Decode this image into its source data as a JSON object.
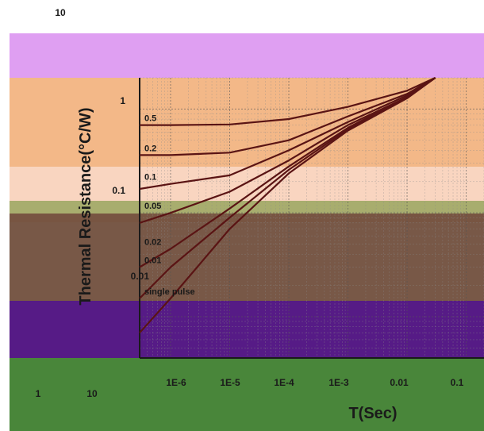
{
  "chart_data": {
    "type": "line",
    "title": "",
    "xlabel": "T(Sec)",
    "ylabel": "Thermal Resistance(°C/W)",
    "x_scale": "log",
    "y_scale": "log",
    "xlim": [
      3e-07,
      0.2
    ],
    "ylim": [
      0.004,
      2
    ],
    "grid": true,
    "x_tick_labels": [
      "1E-6",
      "1E-5",
      "1E-4",
      "1E-3",
      "0.01",
      "0.1"
    ],
    "y_tick_labels": [
      "1",
      "0.1",
      "0.01"
    ],
    "extra_tick_labels": [
      "10",
      "1",
      "10"
    ],
    "series": [
      {
        "name": "0.5",
        "x": [
          3e-07,
          1e-06,
          1e-05,
          0.0001,
          0.001,
          0.01,
          0.03
        ],
        "y": [
          0.7,
          0.7,
          0.71,
          0.8,
          1.05,
          1.5,
          2.0
        ]
      },
      {
        "name": "0.2",
        "x": [
          3e-07,
          1e-06,
          1e-05,
          0.0001,
          0.001,
          0.01,
          0.03
        ],
        "y": [
          0.36,
          0.36,
          0.38,
          0.5,
          0.85,
          1.4,
          2.0
        ]
      },
      {
        "name": "0.1",
        "x": [
          3e-07,
          1e-06,
          1e-05,
          0.0001,
          0.001,
          0.01,
          0.03
        ],
        "y": [
          0.17,
          0.19,
          0.23,
          0.4,
          0.75,
          1.35,
          2.0
        ]
      },
      {
        "name": "0.05",
        "x": [
          3e-07,
          1e-06,
          1e-05,
          0.0001,
          0.001,
          0.01,
          0.03
        ],
        "y": [
          0.08,
          0.1,
          0.16,
          0.32,
          0.7,
          1.3,
          2.0
        ]
      },
      {
        "name": "0.02",
        "x": [
          3e-07,
          1e-06,
          1e-05,
          0.0001,
          0.001,
          0.01,
          0.03
        ],
        "y": [
          0.03,
          0.045,
          0.11,
          0.28,
          0.66,
          1.3,
          2.0
        ]
      },
      {
        "name": "0.01",
        "x": [
          3e-07,
          1e-06,
          1e-05,
          0.0001,
          0.001,
          0.01,
          0.03
        ],
        "y": [
          0.015,
          0.03,
          0.09,
          0.26,
          0.64,
          1.28,
          2.0
        ]
      },
      {
        "name": "single pulse",
        "x": [
          3e-07,
          1e-06,
          1e-05,
          0.0001,
          0.001,
          0.01,
          0.03
        ],
        "y": [
          0.007,
          0.015,
          0.07,
          0.24,
          0.62,
          1.27,
          2.0
        ]
      }
    ]
  }
}
